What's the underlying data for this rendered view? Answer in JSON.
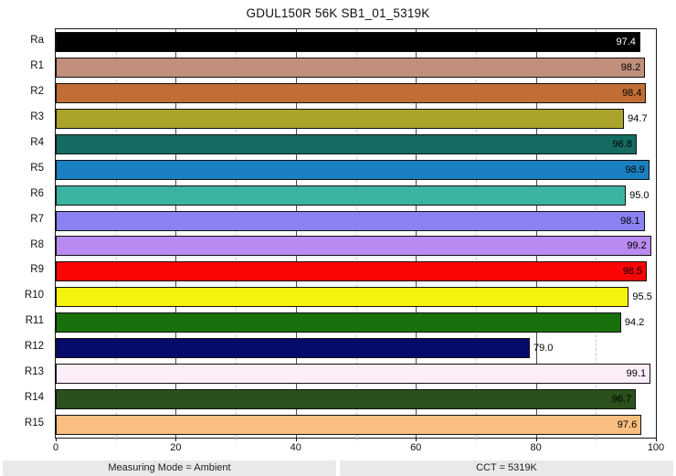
{
  "title": "GDUL150R 56K SB1_01_5319K",
  "footer": {
    "left": "Measuring Mode = Ambient",
    "right": "CCT = 5319K"
  },
  "chart_data": {
    "type": "bar",
    "orientation": "horizontal",
    "title": "GDUL150R 56K SB1_01_5319K",
    "categories": [
      "Ra",
      "R1",
      "R2",
      "R3",
      "R4",
      "R5",
      "R6",
      "R7",
      "R8",
      "R9",
      "R10",
      "R11",
      "R12",
      "R13",
      "R14",
      "R15"
    ],
    "values": [
      97.4,
      98.2,
      98.4,
      94.7,
      96.8,
      98.9,
      95.0,
      98.1,
      99.2,
      98.5,
      95.5,
      94.2,
      79.0,
      99.1,
      96.7,
      97.6
    ],
    "value_labels": [
      "97.4",
      "98.2",
      "98.4",
      "94.7",
      "96.8",
      "98.9",
      "95.0",
      "98.1",
      "99.2",
      "98.5",
      "95.5",
      "94.2",
      "79.0",
      "99.1",
      "96.7",
      "97.6"
    ],
    "bar_colors": [
      "#000000",
      "#c28f7d",
      "#c26d36",
      "#aaa42b",
      "#146b62",
      "#1b80c1",
      "#3ab4a0",
      "#8a82f2",
      "#b98af0",
      "#fb0505",
      "#f5f20d",
      "#19710e",
      "#060b69",
      "#fcedf9",
      "#2b501c",
      "#fabf80"
    ],
    "value_label_colors": [
      "#ffffff",
      "#000000",
      "#000000",
      "#000000",
      "#000000",
      "#000000",
      "#000000",
      "#000000",
      "#000000",
      "#000000",
      "#000000",
      "#000000",
      "#000000",
      "#000000",
      "#000000",
      "#000000"
    ],
    "value_label_inside": [
      true,
      true,
      true,
      false,
      true,
      true,
      false,
      true,
      true,
      true,
      false,
      false,
      false,
      true,
      true,
      true
    ],
    "xlabel": "",
    "ylabel": "",
    "xlim": [
      0,
      100
    ],
    "x_ticks": [
      0,
      20,
      40,
      60,
      80,
      100
    ],
    "x_tick_labels": [
      "0",
      "20",
      "40",
      "60",
      "80",
      "100"
    ],
    "minor_gridlines": [
      10,
      30,
      50,
      70,
      90
    ],
    "major_gridlines": [
      20,
      40,
      60,
      80
    ],
    "grid": "vertical",
    "legend": "none"
  }
}
